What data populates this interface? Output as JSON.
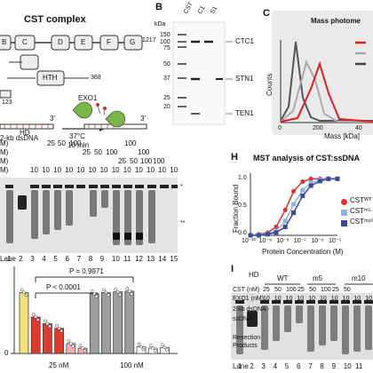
{
  "panel_a": {
    "title": "CST complex",
    "domains": [
      "B",
      "C",
      "D",
      "E",
      "F",
      "G"
    ],
    "end_number": "1217",
    "htth_label": "HTH",
    "num_368": "368",
    "num_123": "123",
    "exo_label": "EXO1",
    "temp": "37°C",
    "time": "10 min",
    "three_prime": "3'",
    "dsdna": "2-kb dsDNA"
  },
  "panel_b": {
    "letter": "B",
    "kda_label": "kDa",
    "lanes": [
      "CST",
      "C1",
      "S1"
    ],
    "markers": [
      "150",
      "100",
      "75",
      "50",
      "37",
      "25",
      "20"
    ],
    "bands": [
      "CTC1",
      "STN1",
      "TEN1"
    ]
  },
  "panel_c": {
    "letter": "C",
    "title": "Mass photome",
    "ylabel": "Counts",
    "xlabel": "Mass [kDa]",
    "ticks": [
      "0",
      "200",
      "40"
    ]
  },
  "gel_top": {
    "hd": "HD",
    "row1": [
      "25",
      "50",
      "100"
    ],
    "row2": [
      "25",
      "50",
      "100"
    ],
    "row3": [
      "25",
      "50",
      "100"
    ],
    "row4": [
      "10",
      "10",
      "10",
      "10",
      "10",
      "10",
      "10",
      "10",
      "10",
      "10",
      "10",
      "10",
      "10"
    ],
    "row1_right": "100",
    "row2_right": "100",
    "row3_right": "100",
    "suffix": "M)",
    "lane_label": "Lane",
    "lanes": [
      "1",
      "2",
      "3",
      "4",
      "5",
      "6",
      "7",
      "8",
      "9",
      "10",
      "11",
      "12",
      "13",
      "14",
      "15"
    ],
    "marker_star": "*",
    "marker_dstar": "**"
  },
  "panel_h": {
    "letter": "H",
    "title": "MST analysis of CST:ssDNA",
    "ylabel": "Fraction Bound",
    "xlabel": "Protein Concentration (M)",
    "yticks": [
      "1.0",
      "0.5",
      "0.0"
    ],
    "xticks": [
      "10⁻¹⁰",
      "10⁻⁹",
      "10⁻⁸",
      "10⁻⁷",
      "10⁻⁶",
      "10⁻⁵"
    ],
    "legend": [
      "CSTᵂᵀ",
      "CSTᵐ⁵",
      "CSTᵐ¹⁰"
    ]
  },
  "panel_i": {
    "letter": "I",
    "hd": "HD",
    "groups": [
      "WT",
      "m5",
      "m10"
    ],
    "cst_label": "CST (nM)",
    "exo_label": "EXO1 (nM)",
    "cst_row": [
      "25",
      "50",
      "100",
      "25",
      "50",
      "100",
      "25",
      "50"
    ],
    "exo_row": [
      "10",
      "10",
      "10",
      "10",
      "10",
      "10",
      "10",
      "10",
      "10",
      "10"
    ],
    "labels": [
      "2-kb dsDNA -",
      "ssDNA -",
      "Resection",
      "Products"
    ],
    "lane_label": "Lane",
    "lanes": [
      "1",
      "2",
      "3",
      "4",
      "5",
      "6",
      "7",
      "8",
      "9",
      "10",
      "11"
    ]
  },
  "bar_chart": {
    "p1": "P = 0.9971",
    "p2": "P < 0.0001",
    "group1": "25 nM",
    "group2": "100 nM",
    "ytick": "0",
    "colors": {
      "yellow": "#f2e27a",
      "red": "#e03a2f",
      "pink": "#f5b1b1",
      "grey": "#9e9e9e"
    }
  },
  "chart_data": [
    {
      "type": "line",
      "title": "MST analysis of CST:ssDNA",
      "xlabel": "Protein Concentration (M)",
      "ylabel": "Fraction Bound",
      "x_scale": "log",
      "x": [
        1e-10,
        3e-10,
        1e-09,
        3e-09,
        1e-08,
        3e-08,
        1e-07,
        3e-07,
        1e-06,
        3e-06,
        1e-05
      ],
      "ylim": [
        0,
        1.1
      ],
      "series": [
        {
          "name": "CSTᵂᵀ",
          "color": "#e03030",
          "values": [
            0.0,
            0.02,
            0.05,
            0.15,
            0.45,
            0.78,
            0.95,
            1.0,
            1.0,
            1.0,
            1.0
          ]
        },
        {
          "name": "CSTᵐ⁵",
          "color": "#8fb3e0",
          "values": [
            0.0,
            0.01,
            0.03,
            0.08,
            0.25,
            0.55,
            0.8,
            0.93,
            0.98,
            1.0,
            1.0
          ]
        },
        {
          "name": "CSTᵐ¹⁰",
          "color": "#3a4a9a",
          "values": [
            0.0,
            0.0,
            0.02,
            0.05,
            0.15,
            0.4,
            0.7,
            0.88,
            0.96,
            1.0,
            1.0
          ]
        }
      ]
    },
    {
      "type": "bar",
      "categories": [
        "3",
        "4",
        "5",
        "6",
        "7",
        "8",
        "9",
        "10",
        "11",
        "12",
        "13",
        "14",
        "15"
      ],
      "values": [
        0.92,
        0.55,
        0.45,
        0.38,
        0.15,
        0.08,
        0.9,
        0.92,
        0.93,
        0.94,
        0.1,
        0.08,
        0.09
      ],
      "colors": [
        "#f2e27a",
        "#e03a2f",
        "#e03a2f",
        "#e03a2f",
        "#f5b1b1",
        "#f5b1b1",
        "#9e9e9e",
        "#9e9e9e",
        "#9e9e9e",
        "#9e9e9e",
        "#ffffff",
        "#ffffff",
        "#ffffff"
      ],
      "ylim": [
        0,
        1.1
      ]
    },
    {
      "type": "line",
      "title": "Mass photome",
      "xlabel": "Mass [kDa]",
      "ylabel": "Counts",
      "x": [
        0,
        50,
        100,
        150,
        200,
        250,
        300,
        350,
        400
      ],
      "series": [
        {
          "color": "#555555",
          "values": [
            0.05,
            0.6,
            1.0,
            0.4,
            0.1,
            0.05,
            0.02,
            0.0,
            0.0
          ]
        },
        {
          "color": "#aaaaaa",
          "values": [
            0.02,
            0.2,
            0.5,
            0.7,
            0.5,
            0.2,
            0.05,
            0.0,
            0.0
          ]
        },
        {
          "color": "#e02020",
          "values": [
            0.0,
            0.05,
            0.2,
            0.5,
            0.6,
            0.3,
            0.08,
            0.0,
            0.0
          ]
        }
      ]
    }
  ]
}
